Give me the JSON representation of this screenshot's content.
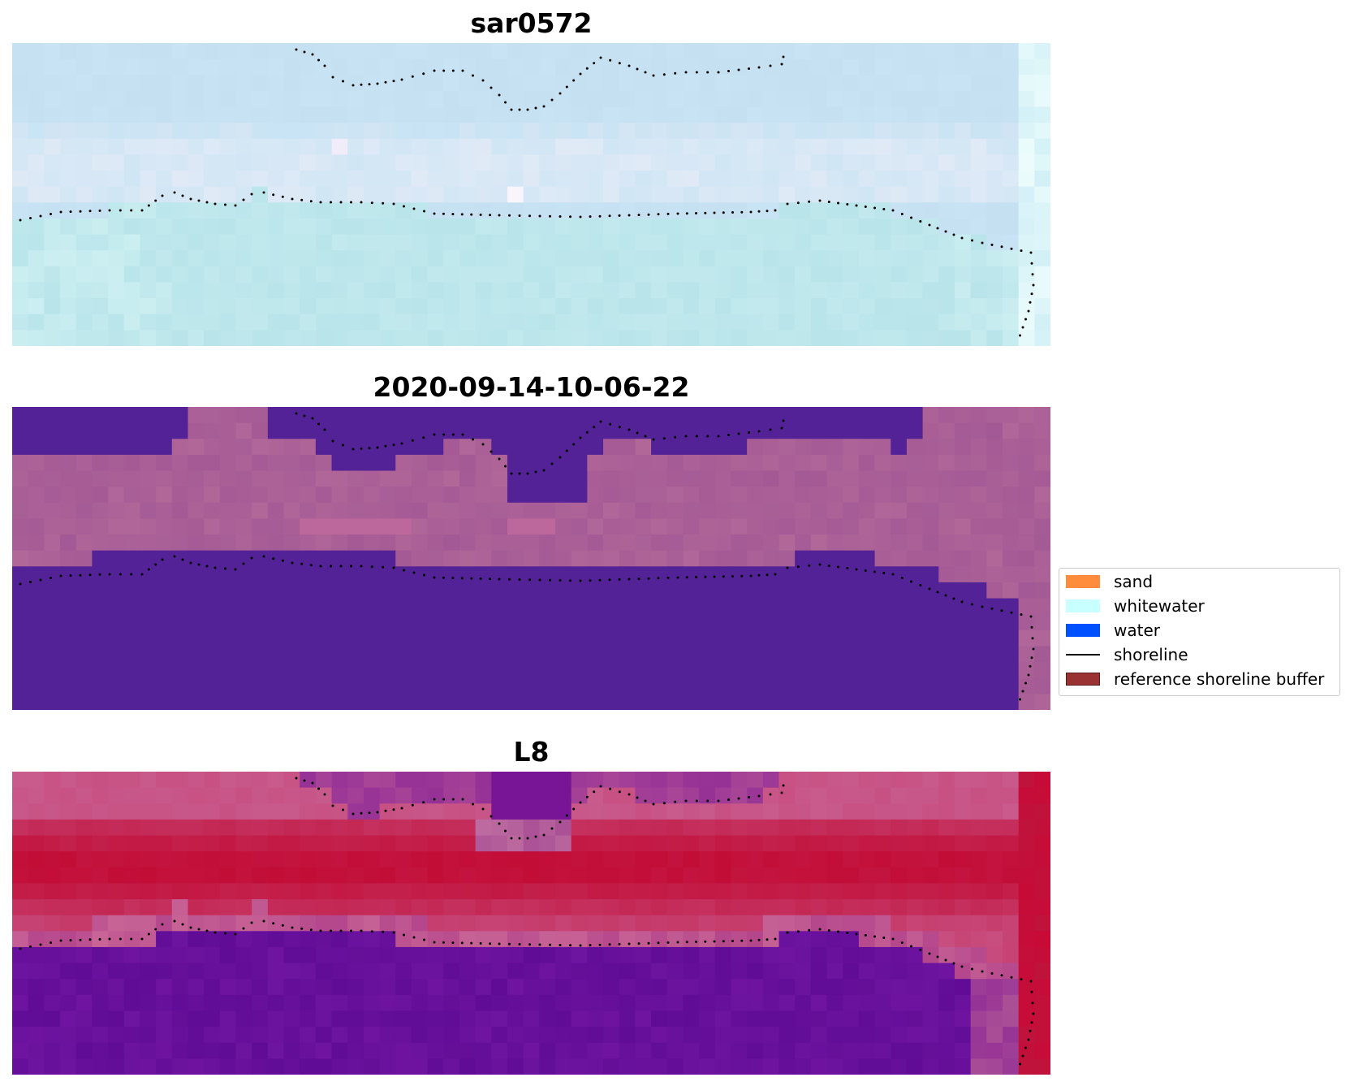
{
  "chart_data": [
    {
      "type": "heatmap",
      "title": "sar0572",
      "series_colors": {
        "palette": "light blue / cyan / white"
      }
    },
    {
      "type": "heatmap",
      "title": "2020-09-14-10-06-22",
      "series_colors": {
        "palette": "dark purple / mauve"
      }
    },
    {
      "type": "heatmap",
      "title": "L8",
      "series_colors": {
        "palette": "purple / crimson"
      }
    }
  ],
  "legend": {
    "placement": "right",
    "items": [
      {
        "label": "sand",
        "kind": "patch",
        "color": "#ff8c3c"
      },
      {
        "label": "whitewater",
        "kind": "patch",
        "color": "#c8ffff"
      },
      {
        "label": "water",
        "kind": "patch",
        "color": "#0050ff"
      },
      {
        "label": "shoreline",
        "kind": "line",
        "color": "#000000"
      },
      {
        "label": "reference shoreline buffer",
        "kind": "patch",
        "color": "#993333"
      }
    ]
  }
}
